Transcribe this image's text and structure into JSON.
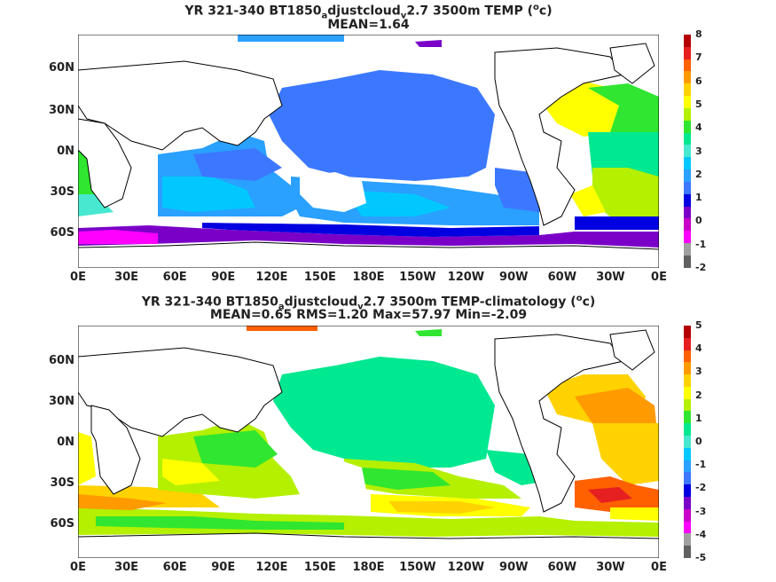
{
  "panels": [
    {
      "title_prefix": "YR 321-340 BT1850",
      "title_sub1": "a",
      "title_mid": "djustcloud",
      "title_sub2": "v",
      "title_suffix": "2.7 3500m TEMP (",
      "title_sup": "o",
      "title_end": "c)",
      "stats": "MEAN=1.64",
      "colorbar_labels": [
        "8",
        "7",
        "6",
        "5",
        "4",
        "3",
        "2",
        "1",
        "0",
        "-1",
        "-2"
      ],
      "colorbar_colors": [
        "#b40000",
        "#e62020",
        "#ff6000",
        "#ff9a00",
        "#ffd200",
        "#ffff00",
        "#b4f000",
        "#30e630",
        "#00e890",
        "#48e8d0",
        "#00c8ff",
        "#2aa0ff",
        "#3c78ff",
        "#0000e0",
        "#7a00c8",
        "#c800c8",
        "#ff00ff",
        "#a0a0a0",
        "#606060"
      ]
    },
    {
      "title_prefix": "YR 321-340 BT1850",
      "title_sub1": "a",
      "title_mid": "djustcloud",
      "title_sub2": "v",
      "title_suffix": "2.7 3500m TEMP-climatology (",
      "title_sup": "o",
      "title_end": "c)",
      "stats": "MEAN=0.65   RMS=1.20   Max=57.97   Min=-2.09",
      "colorbar_labels": [
        "5",
        "4",
        "3",
        "2",
        "1",
        "0",
        "-1",
        "-2",
        "-3",
        "-4",
        "-5"
      ],
      "colorbar_colors": [
        "#b40000",
        "#e62020",
        "#ff6000",
        "#ff9a00",
        "#ffd200",
        "#ffff00",
        "#b4f000",
        "#30e630",
        "#00e890",
        "#48e8d0",
        "#00c8ff",
        "#2aa0ff",
        "#3c78ff",
        "#0000e0",
        "#7a00c8",
        "#c800c8",
        "#ff00ff",
        "#a0a0a0",
        "#606060"
      ]
    }
  ],
  "lon_labels": [
    "0E",
    "30E",
    "60E",
    "90E",
    "120E",
    "150E",
    "180E",
    "150W",
    "120W",
    "90W",
    "60W",
    "30W",
    "0E"
  ],
  "lat_labels": [
    "60N",
    "30N",
    "0N",
    "30S",
    "60S"
  ]
}
